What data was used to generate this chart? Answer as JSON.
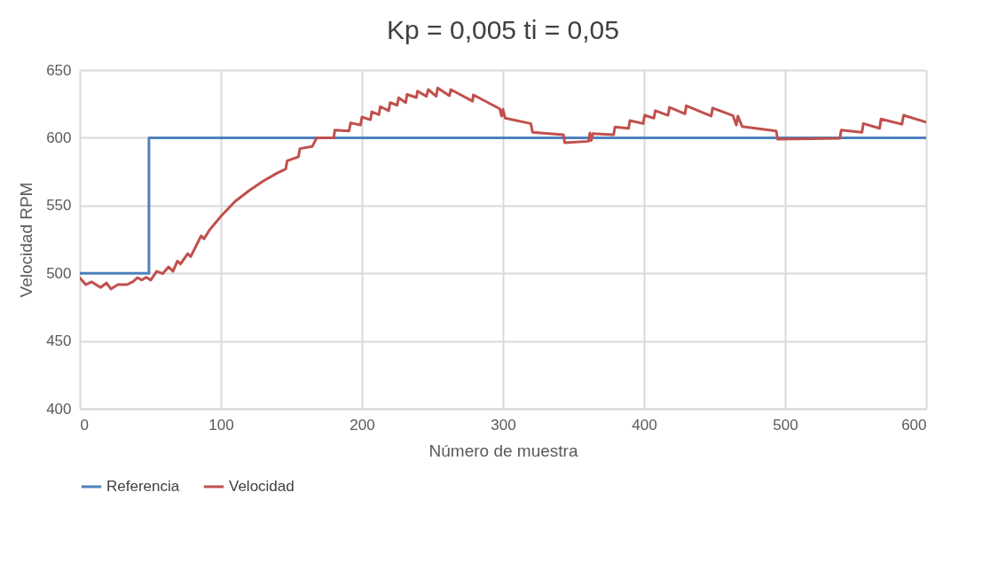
{
  "chart_data": {
    "type": "line",
    "title": "Kp = 0,005  ti = 0,05",
    "xlabel": "Número de muestra",
    "ylabel": "Velocidad RPM",
    "xlim": [
      0,
      600
    ],
    "xticks": [
      0,
      100,
      200,
      300,
      400,
      500,
      600
    ],
    "ylim": [
      400,
      650
    ],
    "yticks": [
      400,
      450,
      500,
      550,
      600,
      650
    ],
    "grid": true,
    "legend": "bottom",
    "marker": "none",
    "line_style": "solid",
    "series": [
      {
        "name": "Referencia",
        "color": "#4f81bd",
        "x": [
          0,
          49,
          49,
          600
        ],
        "values": [
          500,
          500,
          600,
          600
        ]
      },
      {
        "name": "Velocidad",
        "color": "#c0504d",
        "x": [
          0,
          4.2,
          8.4,
          14.7,
          18.9,
          22,
          27,
          33.5,
          37.7,
          40.9,
          44,
          47,
          50.3,
          54.5,
          58.7,
          62.9,
          66,
          69.2,
          71.3,
          76.5,
          78.6,
          86,
          88,
          92,
          100,
          110,
          120,
          130,
          140,
          146,
          147,
          155,
          156,
          164.7,
          168,
          180,
          180.8,
          190.8,
          192,
          199,
          200,
          206,
          207,
          212,
          213,
          219,
          220,
          225,
          226,
          231,
          232,
          238.6,
          239.4,
          245.7,
          247,
          252.6,
          253.7,
          262,
          263,
          278.4,
          279,
          297.7,
          299,
          300,
          301.5,
          319.7,
          321,
          342.8,
          343.8,
          360.6,
          361.6,
          362.6,
          363.6,
          378.4,
          379.4,
          389,
          390,
          399.4,
          400.4,
          407,
          408,
          417,
          418,
          429,
          430,
          447.6,
          448.6,
          463,
          465.4,
          466.5,
          469.6,
          493.7,
          494.7,
          538.8,
          539.8,
          554.5,
          555.5,
          567,
          568,
          582.8,
          584,
          599.6
        ],
        "values": [
          496.6,
          491.6,
          493.6,
          489.5,
          492.8,
          488.4,
          491.6,
          491.6,
          493.8,
          496.7,
          495,
          497,
          495,
          501.4,
          499.7,
          504.7,
          501.4,
          509,
          506.8,
          514.5,
          512.3,
          527.6,
          525.4,
          532,
          542,
          553,
          561,
          568,
          574,
          577,
          583,
          586,
          592,
          593.5,
          600,
          600,
          605.7,
          605,
          611,
          609.4,
          615.3,
          613.3,
          619.2,
          617,
          623,
          620,
          626,
          624,
          629.5,
          626,
          632,
          629.7,
          634.5,
          630.6,
          635.6,
          630.6,
          636.7,
          631,
          635.6,
          627,
          631.7,
          621.4,
          616,
          621,
          614.5,
          610.5,
          604,
          602.2,
          596.3,
          597.4,
          603.5,
          598,
          603,
          602.2,
          608,
          607,
          612.7,
          610.5,
          616.6,
          614.5,
          620,
          616.6,
          622.5,
          617.7,
          623.6,
          616,
          622,
          616.4,
          609.4,
          616,
          608.3,
          605,
          599,
          599.6,
          605.7,
          604,
          610.5,
          607,
          613.8,
          610,
          616.6,
          611.6
        ]
      }
    ]
  }
}
